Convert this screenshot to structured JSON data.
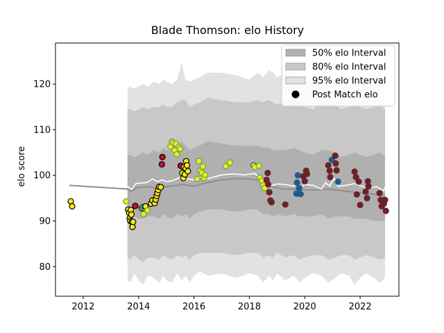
{
  "chart_data": {
    "type": "line",
    "title": "Blade Thomson: elo History",
    "xlabel": "",
    "ylabel": "elo score",
    "xlim": [
      2011.0,
      2023.4
    ],
    "ylim": [
      73.5,
      129
    ],
    "xticks": [
      2012,
      2014,
      2016,
      2018,
      2020,
      2022
    ],
    "yticks": [
      80,
      90,
      100,
      110,
      120
    ],
    "grid": false,
    "legend_position": "top-right",
    "legend": [
      {
        "label": "50% elo Interval",
        "color": "#b0b0b0"
      },
      {
        "label": "80% elo Interval",
        "color": "#c8c8c8"
      },
      {
        "label": "95% elo Interval",
        "color": "#e2e2e2"
      },
      {
        "label": "Post Match elo",
        "color": "#000000"
      }
    ],
    "colors": {
      "band50": "#b0b0b0",
      "band80": "#c8c8c8",
      "band95": "#e2e2e2",
      "median": "#8e8e8e",
      "mean": "#ffffff",
      "yellow": "#f5e61f",
      "red": "#c8102e",
      "blue": "#1e5b8c",
      "maroon": "#6b2328",
      "black": "#000000",
      "green": "#5aa84b"
    },
    "band_x": [
      2013.6,
      2013.7,
      2013.85,
      2014.0,
      2014.15,
      2014.35,
      2014.55,
      2014.75,
      2014.9,
      2015.0,
      2015.2,
      2015.4,
      2015.55,
      2015.7,
      2015.85,
      2016.0,
      2016.2,
      2016.5,
      2017.0,
      2017.5,
      2018.0,
      2018.3,
      2018.5,
      2018.7,
      2018.85,
      2019.0,
      2019.3,
      2019.6,
      2019.8,
      2020.0,
      2020.3,
      2020.6,
      2020.85,
      2021.1,
      2021.3,
      2021.6,
      2021.8,
      2022.0,
      2022.2,
      2022.5,
      2022.7,
      2022.9
    ],
    "band95_upper": [
      119.0,
      119.5,
      119.0,
      119.5,
      120.0,
      119.5,
      120.5,
      120.0,
      121.0,
      120.5,
      120.0,
      121.0,
      124.8,
      121.0,
      120.5,
      121.0,
      121.5,
      122.5,
      122.5,
      122.0,
      121.0,
      122.5,
      121.5,
      123.0,
      122.5,
      121.5,
      122.5,
      123.0,
      122.0,
      121.0,
      120.5,
      122.5,
      123.0,
      121.0,
      120.5,
      121.5,
      122.5,
      121.0,
      120.0,
      121.0,
      122.5,
      120.5
    ],
    "band95_lower": [
      77.0,
      76.5,
      78.5,
      77.0,
      76.0,
      78.0,
      77.5,
      76.5,
      78.0,
      77.0,
      76.5,
      78.5,
      77.0,
      78.0,
      76.5,
      78.0,
      79.0,
      78.0,
      78.5,
      77.5,
      78.5,
      78.0,
      76.5,
      78.0,
      77.0,
      78.5,
      77.0,
      78.0,
      76.5,
      77.5,
      78.5,
      78.0,
      76.5,
      77.5,
      78.5,
      78.0,
      76.0,
      77.5,
      78.5,
      77.5,
      76.5,
      77.5
    ],
    "band80_upper": [
      114.5,
      114.5,
      114.0,
      114.5,
      115.0,
      114.5,
      115.0,
      115.0,
      115.5,
      115.0,
      115.0,
      116.0,
      116.5,
      116.5,
      115.0,
      115.5,
      116.0,
      117.0,
      116.5,
      116.0,
      116.0,
      116.5,
      116.0,
      116.5,
      116.0,
      115.5,
      116.0,
      116.5,
      116.0,
      115.0,
      114.5,
      116.0,
      116.5,
      115.5,
      114.5,
      115.0,
      115.5,
      115.0,
      114.5,
      115.0,
      115.5,
      114.5
    ],
    "band80_lower": [
      82.0,
      81.5,
      82.5,
      81.5,
      81.0,
      82.0,
      82.0,
      81.5,
      82.5,
      82.0,
      81.5,
      82.5,
      82.0,
      82.5,
      81.5,
      82.5,
      83.0,
      83.0,
      83.0,
      82.5,
      83.0,
      83.0,
      82.0,
      82.5,
      82.0,
      83.0,
      82.0,
      82.5,
      81.5,
      82.0,
      82.5,
      82.5,
      81.5,
      82.0,
      82.5,
      82.5,
      81.5,
      82.0,
      82.5,
      82.0,
      81.5,
      82.0
    ],
    "band50_upper": [
      104.5,
      104.5,
      104.0,
      104.5,
      105.0,
      104.5,
      105.5,
      105.0,
      106.0,
      105.5,
      105.5,
      106.5,
      107.5,
      106.5,
      105.5,
      106.0,
      106.5,
      107.5,
      107.0,
      106.5,
      106.5,
      106.5,
      106.0,
      106.0,
      105.5,
      105.5,
      105.5,
      106.0,
      105.5,
      105.0,
      104.5,
      105.5,
      105.5,
      105.0,
      104.0,
      104.5,
      105.0,
      104.5,
      104.0,
      104.5,
      105.0,
      104.0
    ],
    "band50_lower": [
      91.0,
      90.5,
      91.0,
      90.5,
      90.5,
      91.0,
      91.0,
      90.5,
      91.5,
      91.0,
      90.5,
      91.5,
      91.0,
      91.5,
      90.5,
      91.5,
      92.0,
      92.5,
      92.5,
      92.0,
      92.5,
      92.5,
      91.5,
      91.5,
      91.0,
      91.5,
      91.0,
      91.5,
      91.0,
      91.0,
      91.0,
      91.5,
      90.5,
      91.0,
      91.0,
      91.0,
      90.5,
      90.5,
      90.5,
      90.0,
      90.0,
      90.0
    ],
    "median_x": [
      2011.5,
      2013.6,
      2013.75,
      2013.9,
      2014.3,
      2014.8,
      2015.0,
      2015.6,
      2016.0,
      2016.4,
      2017.0,
      2017.5,
      2018.0,
      2018.4,
      2018.6,
      2018.8,
      2019.2,
      2019.6,
      2020.0,
      2020.5,
      2020.8,
      2021.1,
      2021.5,
      2022.0,
      2022.5,
      2022.9
    ],
    "median_y": [
      97.8,
      97.0,
      96.5,
      97.3,
      97.5,
      97.2,
      97.5,
      98.0,
      97.6,
      98.3,
      99.0,
      99.3,
      99.2,
      98.9,
      98.0,
      97.5,
      97.0,
      97.0,
      96.8,
      96.8,
      97.0,
      96.8,
      96.5,
      96.2,
      95.8,
      95.5
    ],
    "mean_x": [
      2011.5,
      2013.6,
      2013.75,
      2013.9,
      2014.3,
      2014.5,
      2014.7,
      2014.85,
      2015.0,
      2015.2,
      2015.5,
      2015.65,
      2015.8,
      2016.0,
      2016.2,
      2016.4,
      2017.0,
      2017.4,
      2017.8,
      2018.2,
      2018.4,
      2018.55,
      2018.7,
      2019.0,
      2019.3,
      2019.6,
      2019.75,
      2019.85,
      2020.0,
      2020.3,
      2020.6,
      2020.75,
      2020.9,
      2021.05,
      2021.2,
      2021.5,
      2021.8,
      2022.0,
      2022.3,
      2022.6,
      2022.85,
      2022.9
    ],
    "mean_y": [
      98.5,
      97.6,
      96.9,
      98.2,
      98.4,
      99.2,
      98.6,
      99.0,
      98.6,
      98.8,
      99.5,
      98.8,
      99.2,
      99.0,
      99.6,
      99.1,
      100.1,
      100.3,
      100.1,
      100.4,
      99.3,
      98.6,
      97.6,
      98.1,
      98.0,
      97.6,
      98.4,
      97.4,
      98.0,
      97.8,
      97.0,
      98.4,
      97.6,
      99.4,
      97.6,
      97.8,
      98.2,
      97.7,
      97.2,
      97.5,
      96.6,
      97.5
    ],
    "points": [
      {
        "x": 2011.55,
        "y": 94.3,
        "fill": "yellow",
        "edge": "black"
      },
      {
        "x": 2011.6,
        "y": 93.2,
        "fill": "yellow",
        "edge": "black"
      },
      {
        "x": 2013.55,
        "y": 94.3,
        "fill": "yellow",
        "edge": "green"
      },
      {
        "x": 2013.62,
        "y": 92.5,
        "fill": "yellow",
        "edge": "black"
      },
      {
        "x": 2013.66,
        "y": 91.8,
        "fill": "yellow",
        "edge": "black"
      },
      {
        "x": 2013.68,
        "y": 90.6,
        "fill": "yellow",
        "edge": "black"
      },
      {
        "x": 2013.7,
        "y": 90.0,
        "fill": "yellow",
        "edge": "black"
      },
      {
        "x": 2013.72,
        "y": 92.4,
        "fill": "yellow",
        "edge": "black"
      },
      {
        "x": 2013.74,
        "y": 91.4,
        "fill": "yellow",
        "edge": "black"
      },
      {
        "x": 2013.76,
        "y": 89.8,
        "fill": "yellow",
        "edge": "black"
      },
      {
        "x": 2013.78,
        "y": 88.7,
        "fill": "yellow",
        "edge": "black"
      },
      {
        "x": 2013.8,
        "y": 89.8,
        "fill": "yellow",
        "edge": "black"
      },
      {
        "x": 2013.88,
        "y": 93.3,
        "fill": "red",
        "edge": "black"
      },
      {
        "x": 2014.12,
        "y": 92.8,
        "fill": "yellow",
        "edge": "black"
      },
      {
        "x": 2014.16,
        "y": 93.1,
        "fill": "green",
        "edge": "blue"
      },
      {
        "x": 2014.18,
        "y": 91.5,
        "fill": "yellow",
        "edge": "green"
      },
      {
        "x": 2014.22,
        "y": 92.7,
        "fill": "green",
        "edge": "blue"
      },
      {
        "x": 2014.25,
        "y": 93.2,
        "fill": "yellow",
        "edge": "black"
      },
      {
        "x": 2014.32,
        "y": 92.3,
        "fill": "yellow",
        "edge": "green"
      },
      {
        "x": 2014.45,
        "y": 93.8,
        "fill": "yellow",
        "edge": "black"
      },
      {
        "x": 2014.5,
        "y": 94.5,
        "fill": "yellow",
        "edge": "black"
      },
      {
        "x": 2014.58,
        "y": 93.9,
        "fill": "yellow",
        "edge": "black"
      },
      {
        "x": 2014.62,
        "y": 94.7,
        "fill": "yellow",
        "edge": "black"
      },
      {
        "x": 2014.65,
        "y": 95.5,
        "fill": "yellow",
        "edge": "black"
      },
      {
        "x": 2014.68,
        "y": 96.1,
        "fill": "yellow",
        "edge": "black"
      },
      {
        "x": 2014.71,
        "y": 96.8,
        "fill": "yellow",
        "edge": "black"
      },
      {
        "x": 2014.74,
        "y": 97.5,
        "fill": "yellow",
        "edge": "black"
      },
      {
        "x": 2014.8,
        "y": 97.4,
        "fill": "yellow",
        "edge": "black"
      },
      {
        "x": 2014.84,
        "y": 102.4,
        "fill": "red",
        "edge": "black"
      },
      {
        "x": 2014.86,
        "y": 104.0,
        "fill": "red",
        "edge": "black"
      },
      {
        "x": 2015.15,
        "y": 106.3,
        "fill": "yellow",
        "edge": "green"
      },
      {
        "x": 2015.2,
        "y": 107.4,
        "fill": "yellow",
        "edge": "green"
      },
      {
        "x": 2015.25,
        "y": 107.1,
        "fill": "yellow",
        "edge": "green"
      },
      {
        "x": 2015.3,
        "y": 105.5,
        "fill": "yellow",
        "edge": "green"
      },
      {
        "x": 2015.35,
        "y": 106.9,
        "fill": "yellow",
        "edge": "green"
      },
      {
        "x": 2015.38,
        "y": 104.6,
        "fill": "yellow",
        "edge": "green"
      },
      {
        "x": 2015.45,
        "y": 106.2,
        "fill": "yellow",
        "edge": "green"
      },
      {
        "x": 2015.5,
        "y": 105.8,
        "fill": "yellow",
        "edge": "green"
      },
      {
        "x": 2015.52,
        "y": 102.1,
        "fill": "red",
        "edge": "black"
      },
      {
        "x": 2015.58,
        "y": 100.5,
        "fill": "yellow",
        "edge": "black"
      },
      {
        "x": 2015.62,
        "y": 99.4,
        "fill": "yellow",
        "edge": "black"
      },
      {
        "x": 2015.64,
        "y": 101.8,
        "fill": "yellow",
        "edge": "black"
      },
      {
        "x": 2015.67,
        "y": 100.2,
        "fill": "yellow",
        "edge": "black"
      },
      {
        "x": 2015.7,
        "y": 101.5,
        "fill": "yellow",
        "edge": "black"
      },
      {
        "x": 2015.72,
        "y": 103.1,
        "fill": "yellow",
        "edge": "black"
      },
      {
        "x": 2015.75,
        "y": 102.2,
        "fill": "yellow",
        "edge": "black"
      },
      {
        "x": 2015.78,
        "y": 100.9,
        "fill": "yellow",
        "edge": "black"
      },
      {
        "x": 2016.12,
        "y": 99.2,
        "fill": "yellow",
        "edge": "green"
      },
      {
        "x": 2016.18,
        "y": 103.1,
        "fill": "yellow",
        "edge": "green"
      },
      {
        "x": 2016.22,
        "y": 101.0,
        "fill": "yellow",
        "edge": "green"
      },
      {
        "x": 2016.28,
        "y": 100.6,
        "fill": "yellow",
        "edge": "green"
      },
      {
        "x": 2016.32,
        "y": 101.9,
        "fill": "yellow",
        "edge": "green"
      },
      {
        "x": 2016.36,
        "y": 99.4,
        "fill": "yellow",
        "edge": "green"
      },
      {
        "x": 2016.4,
        "y": 100.1,
        "fill": "yellow",
        "edge": "green"
      },
      {
        "x": 2017.15,
        "y": 102.0,
        "fill": "yellow",
        "edge": "green"
      },
      {
        "x": 2017.3,
        "y": 102.8,
        "fill": "yellow",
        "edge": "green"
      },
      {
        "x": 2018.15,
        "y": 102.2,
        "fill": "yellow",
        "edge": "blue"
      },
      {
        "x": 2018.2,
        "y": 101.8,
        "fill": "yellow",
        "edge": "green"
      },
      {
        "x": 2018.35,
        "y": 102.1,
        "fill": "yellow",
        "edge": "green"
      },
      {
        "x": 2018.38,
        "y": 99.5,
        "fill": "yellow",
        "edge": "green"
      },
      {
        "x": 2018.45,
        "y": 98.8,
        "fill": "yellow",
        "edge": "green"
      },
      {
        "x": 2018.5,
        "y": 97.8,
        "fill": "yellow",
        "edge": "green"
      },
      {
        "x": 2018.55,
        "y": 97.2,
        "fill": "yellow",
        "edge": "green"
      },
      {
        "x": 2018.62,
        "y": 99.0,
        "fill": "maroon",
        "edge": "maroon"
      },
      {
        "x": 2018.66,
        "y": 100.5,
        "fill": "maroon",
        "edge": "maroon"
      },
      {
        "x": 2018.68,
        "y": 98.0,
        "fill": "maroon",
        "edge": "maroon"
      },
      {
        "x": 2018.72,
        "y": 96.3,
        "fill": "maroon",
        "edge": "maroon"
      },
      {
        "x": 2018.76,
        "y": 94.5,
        "fill": "maroon",
        "edge": "maroon"
      },
      {
        "x": 2018.8,
        "y": 94.1,
        "fill": "maroon",
        "edge": "maroon"
      },
      {
        "x": 2019.3,
        "y": 93.6,
        "fill": "maroon",
        "edge": "maroon"
      },
      {
        "x": 2019.7,
        "y": 96.0,
        "fill": "blue",
        "edge": "blue"
      },
      {
        "x": 2019.72,
        "y": 98.4,
        "fill": "blue",
        "edge": "blue"
      },
      {
        "x": 2019.75,
        "y": 100.0,
        "fill": "blue",
        "edge": "blue"
      },
      {
        "x": 2019.8,
        "y": 97.2,
        "fill": "blue",
        "edge": "blue"
      },
      {
        "x": 2019.85,
        "y": 95.9,
        "fill": "blue",
        "edge": "blue"
      },
      {
        "x": 2019.95,
        "y": 99.8,
        "fill": "maroon",
        "edge": "maroon"
      },
      {
        "x": 2020.0,
        "y": 98.7,
        "fill": "maroon",
        "edge": "maroon"
      },
      {
        "x": 2020.05,
        "y": 101.0,
        "fill": "maroon",
        "edge": "maroon"
      },
      {
        "x": 2020.08,
        "y": 100.3,
        "fill": "maroon",
        "edge": "maroon"
      },
      {
        "x": 2020.85,
        "y": 102.2,
        "fill": "maroon",
        "edge": "maroon"
      },
      {
        "x": 2020.9,
        "y": 101.0,
        "fill": "maroon",
        "edge": "maroon"
      },
      {
        "x": 2020.92,
        "y": 99.6,
        "fill": "maroon",
        "edge": "maroon"
      },
      {
        "x": 2020.98,
        "y": 103.4,
        "fill": "blue",
        "edge": "blue"
      },
      {
        "x": 2021.1,
        "y": 104.3,
        "fill": "maroon",
        "edge": "maroon"
      },
      {
        "x": 2021.12,
        "y": 102.6,
        "fill": "maroon",
        "edge": "maroon"
      },
      {
        "x": 2021.15,
        "y": 101.1,
        "fill": "maroon",
        "edge": "maroon"
      },
      {
        "x": 2021.2,
        "y": 98.6,
        "fill": "blue",
        "edge": "blue"
      },
      {
        "x": 2021.8,
        "y": 100.8,
        "fill": "maroon",
        "edge": "maroon"
      },
      {
        "x": 2021.85,
        "y": 99.6,
        "fill": "maroon",
        "edge": "maroon"
      },
      {
        "x": 2021.88,
        "y": 95.8,
        "fill": "maroon",
        "edge": "maroon"
      },
      {
        "x": 2021.95,
        "y": 98.6,
        "fill": "maroon",
        "edge": "maroon"
      },
      {
        "x": 2022.0,
        "y": 93.5,
        "fill": "maroon",
        "edge": "maroon"
      },
      {
        "x": 2022.2,
        "y": 96.4,
        "fill": "maroon",
        "edge": "maroon"
      },
      {
        "x": 2022.25,
        "y": 95.0,
        "fill": "maroon",
        "edge": "maroon"
      },
      {
        "x": 2022.28,
        "y": 98.7,
        "fill": "maroon",
        "edge": "maroon"
      },
      {
        "x": 2022.3,
        "y": 97.6,
        "fill": "maroon",
        "edge": "maroon"
      },
      {
        "x": 2022.7,
        "y": 96.1,
        "fill": "maroon",
        "edge": "maroon"
      },
      {
        "x": 2022.74,
        "y": 94.6,
        "fill": "maroon",
        "edge": "maroon"
      },
      {
        "x": 2022.78,
        "y": 93.2,
        "fill": "maroon",
        "edge": "maroon"
      },
      {
        "x": 2022.82,
        "y": 94.0,
        "fill": "maroon",
        "edge": "maroon"
      },
      {
        "x": 2022.86,
        "y": 93.8,
        "fill": "maroon",
        "edge": "maroon"
      },
      {
        "x": 2022.9,
        "y": 94.6,
        "fill": "maroon",
        "edge": "maroon"
      },
      {
        "x": 2022.93,
        "y": 92.2,
        "fill": "maroon",
        "edge": "maroon"
      }
    ]
  }
}
